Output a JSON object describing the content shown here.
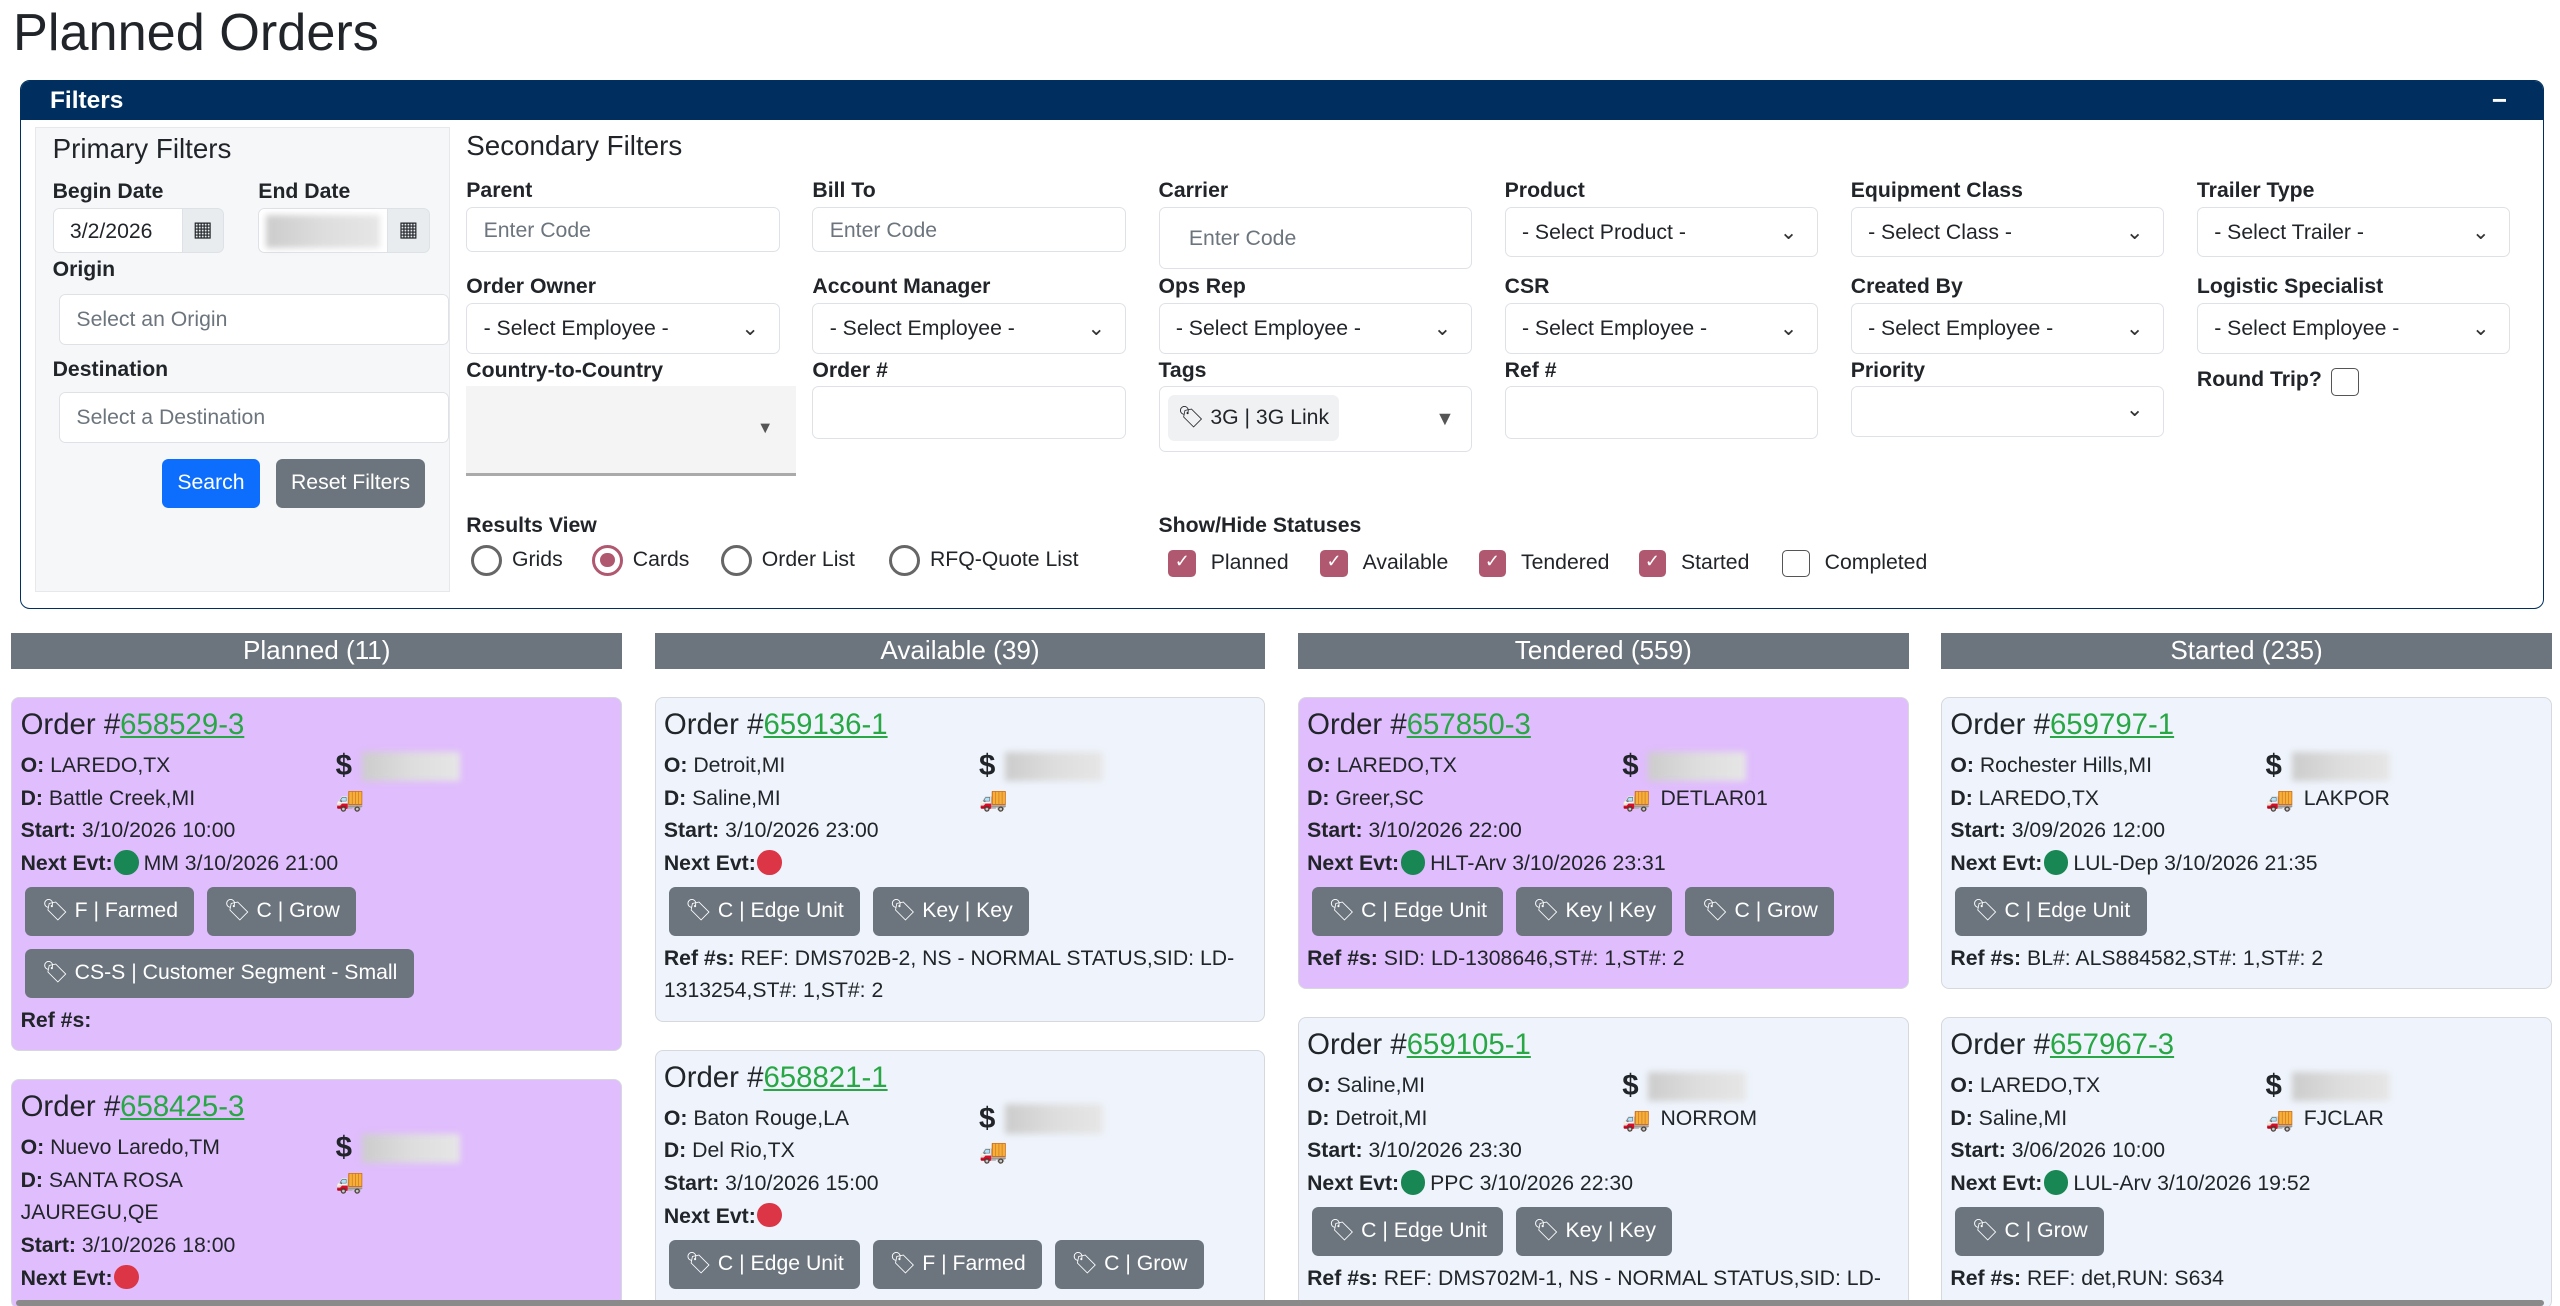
{
  "title": "Planned Orders",
  "filters": {
    "header": "Filters",
    "collapse": "−",
    "primary": {
      "title": "Primary Filters",
      "begin_label": "Begin Date",
      "begin_value": "3/2/2026",
      "end_label": "End Date",
      "origin_label": "Origin",
      "origin_placeholder": "Select an Origin",
      "dest_label": "Destination",
      "dest_placeholder": "Select a Destination",
      "search": "Search",
      "reset": "Reset Filters"
    },
    "secondary": {
      "title": "Secondary Filters",
      "parent": {
        "label": "Parent",
        "placeholder": "Enter Code"
      },
      "bill_to": {
        "label": "Bill To",
        "placeholder": "Enter Code"
      },
      "carrier": {
        "label": "Carrier",
        "placeholder": "Enter Code"
      },
      "product": {
        "label": "Product",
        "value": "- Select Product -"
      },
      "equipment": {
        "label": "Equipment Class",
        "value": "- Select Class -"
      },
      "trailer": {
        "label": "Trailer Type",
        "value": "- Select Trailer -"
      },
      "order_owner": {
        "label": "Order Owner",
        "value": "- Select Employee -"
      },
      "account_manager": {
        "label": "Account Manager",
        "value": "- Select Employee -"
      },
      "ops_rep": {
        "label": "Ops Rep",
        "value": "- Select Employee -"
      },
      "csr": {
        "label": "CSR",
        "value": "- Select Employee -"
      },
      "created_by": {
        "label": "Created By",
        "value": "- Select Employee -"
      },
      "logistic": {
        "label": "Logistic Specialist",
        "value": "- Select Employee -"
      },
      "country": {
        "label": "Country-to-Country"
      },
      "order_no": {
        "label": "Order #"
      },
      "tags": {
        "label": "Tags",
        "value": "3G | 3G Link"
      },
      "ref_no": {
        "label": "Ref #"
      },
      "priority": {
        "label": "Priority"
      },
      "round_trip": {
        "label": "Round Trip?"
      }
    },
    "results_view": {
      "label": "Results View",
      "options": [
        "Grids",
        "Cards",
        "Order List",
        "RFQ-Quote List"
      ],
      "selected": "Cards"
    },
    "statuses": {
      "label": "Show/Hide Statuses",
      "options": [
        {
          "label": "Planned",
          "checked": true
        },
        {
          "label": "Available",
          "checked": true
        },
        {
          "label": "Tendered",
          "checked": true
        },
        {
          "label": "Started",
          "checked": true
        },
        {
          "label": "Completed",
          "checked": false
        }
      ]
    }
  },
  "columns": [
    {
      "header": "Planned (11)",
      "cards": [
        {
          "type": "planned",
          "order": "658529-3",
          "o": "LAREDO,TX",
          "d": "Battle Creek,MI",
          "start": "3/10/2026 10:00",
          "evt_color": "#198754",
          "evt": "MM 3/10/2026 21:00",
          "carrier": "",
          "tags": [
            "F | Farmed",
            "C | Grow",
            "CS-S | Customer Segment - Small"
          ],
          "refs": ""
        },
        {
          "type": "planned",
          "order": "658425-3",
          "o": "Nuevo Laredo,TM",
          "d": "SANTA ROSA JAUREGU,QE",
          "start": "3/10/2026 18:00",
          "evt_color": "#dc3545",
          "evt": "",
          "carrier": "",
          "tags": [],
          "refs": null
        }
      ]
    },
    {
      "header": "Available (39)",
      "cards": [
        {
          "type": "normal",
          "order": "659136-1",
          "o": "Detroit,MI",
          "d": "Saline,MI",
          "start": "3/10/2026 23:00",
          "evt_color": "#dc3545",
          "evt": "",
          "carrier": "",
          "tags": [
            "C | Edge Unit",
            "Key | Key"
          ],
          "refs": "REF: DMS702B-2, NS - NORMAL STATUS,SID: LD-1313254,ST#: 1,ST#: 2"
        },
        {
          "type": "normal",
          "order": "658821-1",
          "o": "Baton Rouge,LA",
          "d": "Del Rio,TX",
          "start": "3/10/2026 15:00",
          "evt_color": "#dc3545",
          "evt": "",
          "carrier": "",
          "tags": [
            "C | Edge Unit",
            "F | Farmed",
            "C | Grow"
          ],
          "refs": null
        }
      ]
    },
    {
      "header": "Tendered (559)",
      "cards": [
        {
          "type": "planned",
          "order": "657850-3",
          "o": "LAREDO,TX",
          "d": "Greer,SC",
          "start": "3/10/2026 22:00",
          "evt_color": "#198754",
          "evt": "HLT-Arv 3/10/2026 23:31",
          "carrier": "DETLAR01",
          "tags": [
            "C | Edge Unit",
            "Key | Key",
            "C | Grow"
          ],
          "refs": "SID: LD-1308646,ST#: 1,ST#: 2"
        },
        {
          "type": "normal",
          "order": "659105-1",
          "o": "Saline,MI",
          "d": "Detroit,MI",
          "start": "3/10/2026 23:30",
          "evt_color": "#198754",
          "evt": "PPC 3/10/2026 22:30",
          "carrier": "NORROM",
          "tags": [
            "C | Edge Unit",
            "Key | Key"
          ],
          "refs": "REF: DMS702M-1, NS - NORMAL STATUS,SID: LD-"
        }
      ]
    },
    {
      "header": "Started (235)",
      "cards": [
        {
          "type": "normal",
          "order": "659797-1",
          "o": "Rochester Hills,MI",
          "d": "LAREDO,TX",
          "start": "3/09/2026 12:00",
          "evt_color": "#198754",
          "evt": "LUL-Dep 3/10/2026 21:35",
          "carrier": "LAKPOR",
          "tags": [
            "C | Edge Unit"
          ],
          "refs": "BL#: ALS884582,ST#: 1,ST#: 2"
        },
        {
          "type": "normal",
          "order": "657967-3",
          "o": "LAREDO,TX",
          "d": "Saline,MI",
          "start": "3/06/2026 10:00",
          "evt_color": "#198754",
          "evt": "LUL-Arv 3/10/2026 19:52",
          "carrier": "FJCLAR",
          "tags": [
            "C | Grow"
          ],
          "refs": "REF: det,RUN: S634"
        }
      ]
    }
  ],
  "labels": {
    "order_prefix": "Order #",
    "o": "O:",
    "d": "D:",
    "start": "Start:",
    "next": "Next Evt:",
    "refs": "Ref #s:",
    "dollar": "$"
  }
}
